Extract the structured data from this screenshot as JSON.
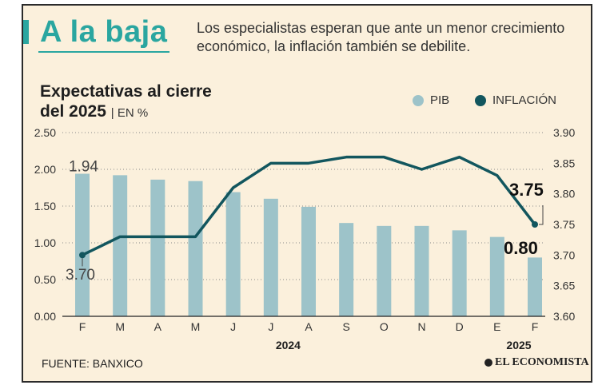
{
  "header": {
    "headline": "A la baja",
    "subtitle": "Los especialistas esperan que ante un menor crecimiento económico, la inflación también se debilite."
  },
  "chart_data": {
    "type": "bar",
    "title_line1": "Expectativas al cierre",
    "title_line2": "del 2025",
    "title_unit": "| EN %",
    "categories": [
      "F",
      "M",
      "A",
      "M",
      "J",
      "J",
      "A",
      "S",
      "O",
      "N",
      "D",
      "E",
      "F"
    ],
    "year_labels": [
      {
        "label": "2024",
        "center_index": 5
      },
      {
        "label": "2025",
        "center_index": 12
      }
    ],
    "series": [
      {
        "name": "PIB",
        "type": "bar",
        "axis": "left",
        "color": "#9dc3c9",
        "values": [
          1.94,
          1.92,
          1.86,
          1.84,
          1.69,
          1.6,
          1.49,
          1.27,
          1.23,
          1.23,
          1.17,
          1.08,
          0.8
        ]
      },
      {
        "name": "INFLACIÓN",
        "type": "line",
        "axis": "right",
        "color": "#12565e",
        "values": [
          3.7,
          3.73,
          3.73,
          3.73,
          3.81,
          3.85,
          3.85,
          3.86,
          3.86,
          3.84,
          3.86,
          3.83,
          3.75
        ]
      }
    ],
    "y_left": {
      "min": 0,
      "max": 2.5,
      "ticks": [
        "0.00",
        "0.50",
        "1.00",
        "1.50",
        "2.00",
        "2.50"
      ]
    },
    "y_right": {
      "min": 3.6,
      "max": 3.9,
      "ticks": [
        "3.60",
        "3.65",
        "3.70",
        "3.75",
        "3.80",
        "3.85",
        "3.90"
      ]
    },
    "annotations": [
      {
        "text": "1.94",
        "series": "PIB",
        "index": 0
      },
      {
        "text": "3.70",
        "series": "INFLACIÓN",
        "index": 0
      },
      {
        "text": "3.75",
        "series": "INFLACIÓN",
        "index": 12
      },
      {
        "text": "0.80",
        "series": "PIB",
        "index": 12
      }
    ]
  },
  "legend": {
    "pib_label": "PIB",
    "inflation_label": "INFLACIÓN"
  },
  "footer": {
    "source": "FUENTE: BANXICO",
    "brand": "EL ECONOMISTA"
  },
  "colors": {
    "accent": "#2aa6a0",
    "bar": "#9dc3c9",
    "line": "#12565e",
    "background": "#fbf0dc"
  }
}
